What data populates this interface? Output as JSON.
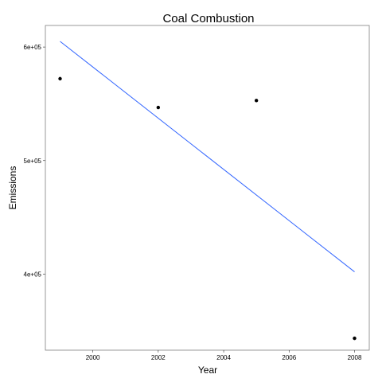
{
  "chart_data": {
    "type": "scatter",
    "title": "Coal Combustion",
    "xlabel": "Year",
    "ylabel": "Emissions",
    "xlim": [
      1998.55,
      2008.45
    ],
    "ylim": [
      333000,
      619000
    ],
    "x_ticks": [
      2000,
      2002,
      2004,
      2006,
      2008
    ],
    "x_tick_labels": [
      "2000",
      "2002",
      "2004",
      "2006",
      "2008"
    ],
    "y_ticks": [
      400000,
      500000,
      600000
    ],
    "y_tick_labels": [
      "4e+05",
      "5e+05",
      "6e+05"
    ],
    "grid": true,
    "points": [
      {
        "x": 1999,
        "y": 572126
      },
      {
        "x": 2002,
        "y": 546789
      },
      {
        "x": 2005,
        "y": 552881
      },
      {
        "x": 2008,
        "y": 343432
      }
    ],
    "trend_line": {
      "x": [
        1999,
        2008
      ],
      "y": [
        605000,
        402000
      ]
    },
    "colors": {
      "points": "#000000",
      "trend_line": "#3366ff",
      "panel_border": "#7f7f7f",
      "grid": "#ebebeb"
    }
  }
}
